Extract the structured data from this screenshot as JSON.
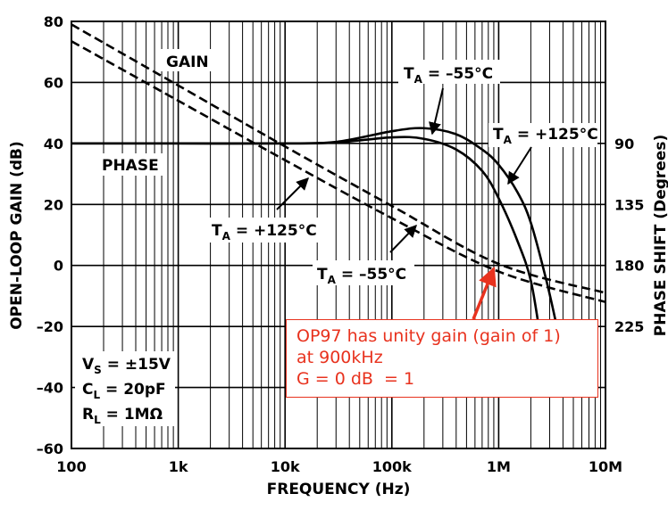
{
  "chart_data": {
    "type": "line",
    "xlabel": "FREQUENCY (Hz)",
    "ylabel_left": "OPEN-LOOP GAIN (dB)",
    "ylabel_right": "PHASE SHIFT (Degrees)",
    "xscale": "log",
    "xlim": [
      100,
      10000000
    ],
    "ylim": [
      -60,
      80
    ],
    "x_tick_labels": [
      "100",
      "1k",
      "10k",
      "100k",
      "1M",
      "10M"
    ],
    "x_tick_values": [
      100,
      1000,
      10000,
      100000,
      1000000,
      10000000
    ],
    "y_tick_labels": [
      "80",
      "60",
      "40",
      "20",
      "0",
      "–20",
      "–40",
      "–60"
    ],
    "y_tick_values": [
      80,
      60,
      40,
      20,
      0,
      -20,
      -40,
      -60
    ],
    "right_tick_labels": [
      "90",
      "135",
      "180",
      "225"
    ],
    "right_tick_gain_positions": [
      40,
      20,
      0,
      -20
    ],
    "grid": true,
    "series": [
      {
        "style": "dashed",
        "x": [
          100,
          1000,
          10000,
          100000,
          1000000,
          10000000
        ],
        "values": [
          79,
          59,
          39,
          19.5,
          0.5,
          -9
        ]
      },
      {
        "style": "dashed",
        "x": [
          100,
          1000,
          10000,
          100000,
          1000000,
          10000000
        ],
        "values": [
          73.5,
          54,
          34.5,
          15.5,
          -2,
          -12
        ]
      },
      {
        "style": "solid",
        "x": [
          100,
          1000,
          10000,
          30000,
          100000,
          200000,
          400000,
          700000,
          1000000,
          1500000,
          2000000,
          2800000,
          3500000
        ],
        "values": [
          40,
          40,
          40,
          40.5,
          44,
          45,
          43,
          38,
          33,
          24,
          14,
          -5,
          -20
        ]
      },
      {
        "style": "solid",
        "x": [
          100,
          1000,
          10000,
          30000,
          100000,
          200000,
          400000,
          700000,
          1000000,
          1500000,
          2000000,
          2500000,
          3000000
        ],
        "values": [
          40,
          40,
          40,
          40.3,
          42,
          41.5,
          38,
          31,
          22,
          8,
          -5,
          -25,
          -40
        ]
      }
    ],
    "annotations": [
      {
        "id": "gain",
        "text": "GAIN"
      },
      {
        "id": "phase",
        "text": "PHASE"
      },
      {
        "id": "ta-m55-top",
        "sub": "A",
        "text_pre": "T",
        "text_post": " = –55°C"
      },
      {
        "id": "ta-125-top",
        "sub": "A",
        "text_pre": "T",
        "text_post": " = +125°C"
      },
      {
        "id": "ta-125-bot",
        "sub": "A",
        "text_pre": "T",
        "text_post": " = +125°C"
      },
      {
        "id": "ta-m55-bot",
        "sub": "A",
        "text_pre": "T",
        "text_post": " = –55°C"
      }
    ],
    "conditions": [
      {
        "pre": "V",
        "sub": "S",
        "post": " = ±15V"
      },
      {
        "pre": "C",
        "sub": "L",
        "post": " = 20pF"
      },
      {
        "pre": "R",
        "sub": "L",
        "post": " = 1MΩ"
      }
    ],
    "callout_lines": [
      "OP97 has unity gain (gain of 1)",
      "at 900kHz",
      "G = 0 dB  = 1"
    ],
    "callout_color": "#e8321e"
  }
}
